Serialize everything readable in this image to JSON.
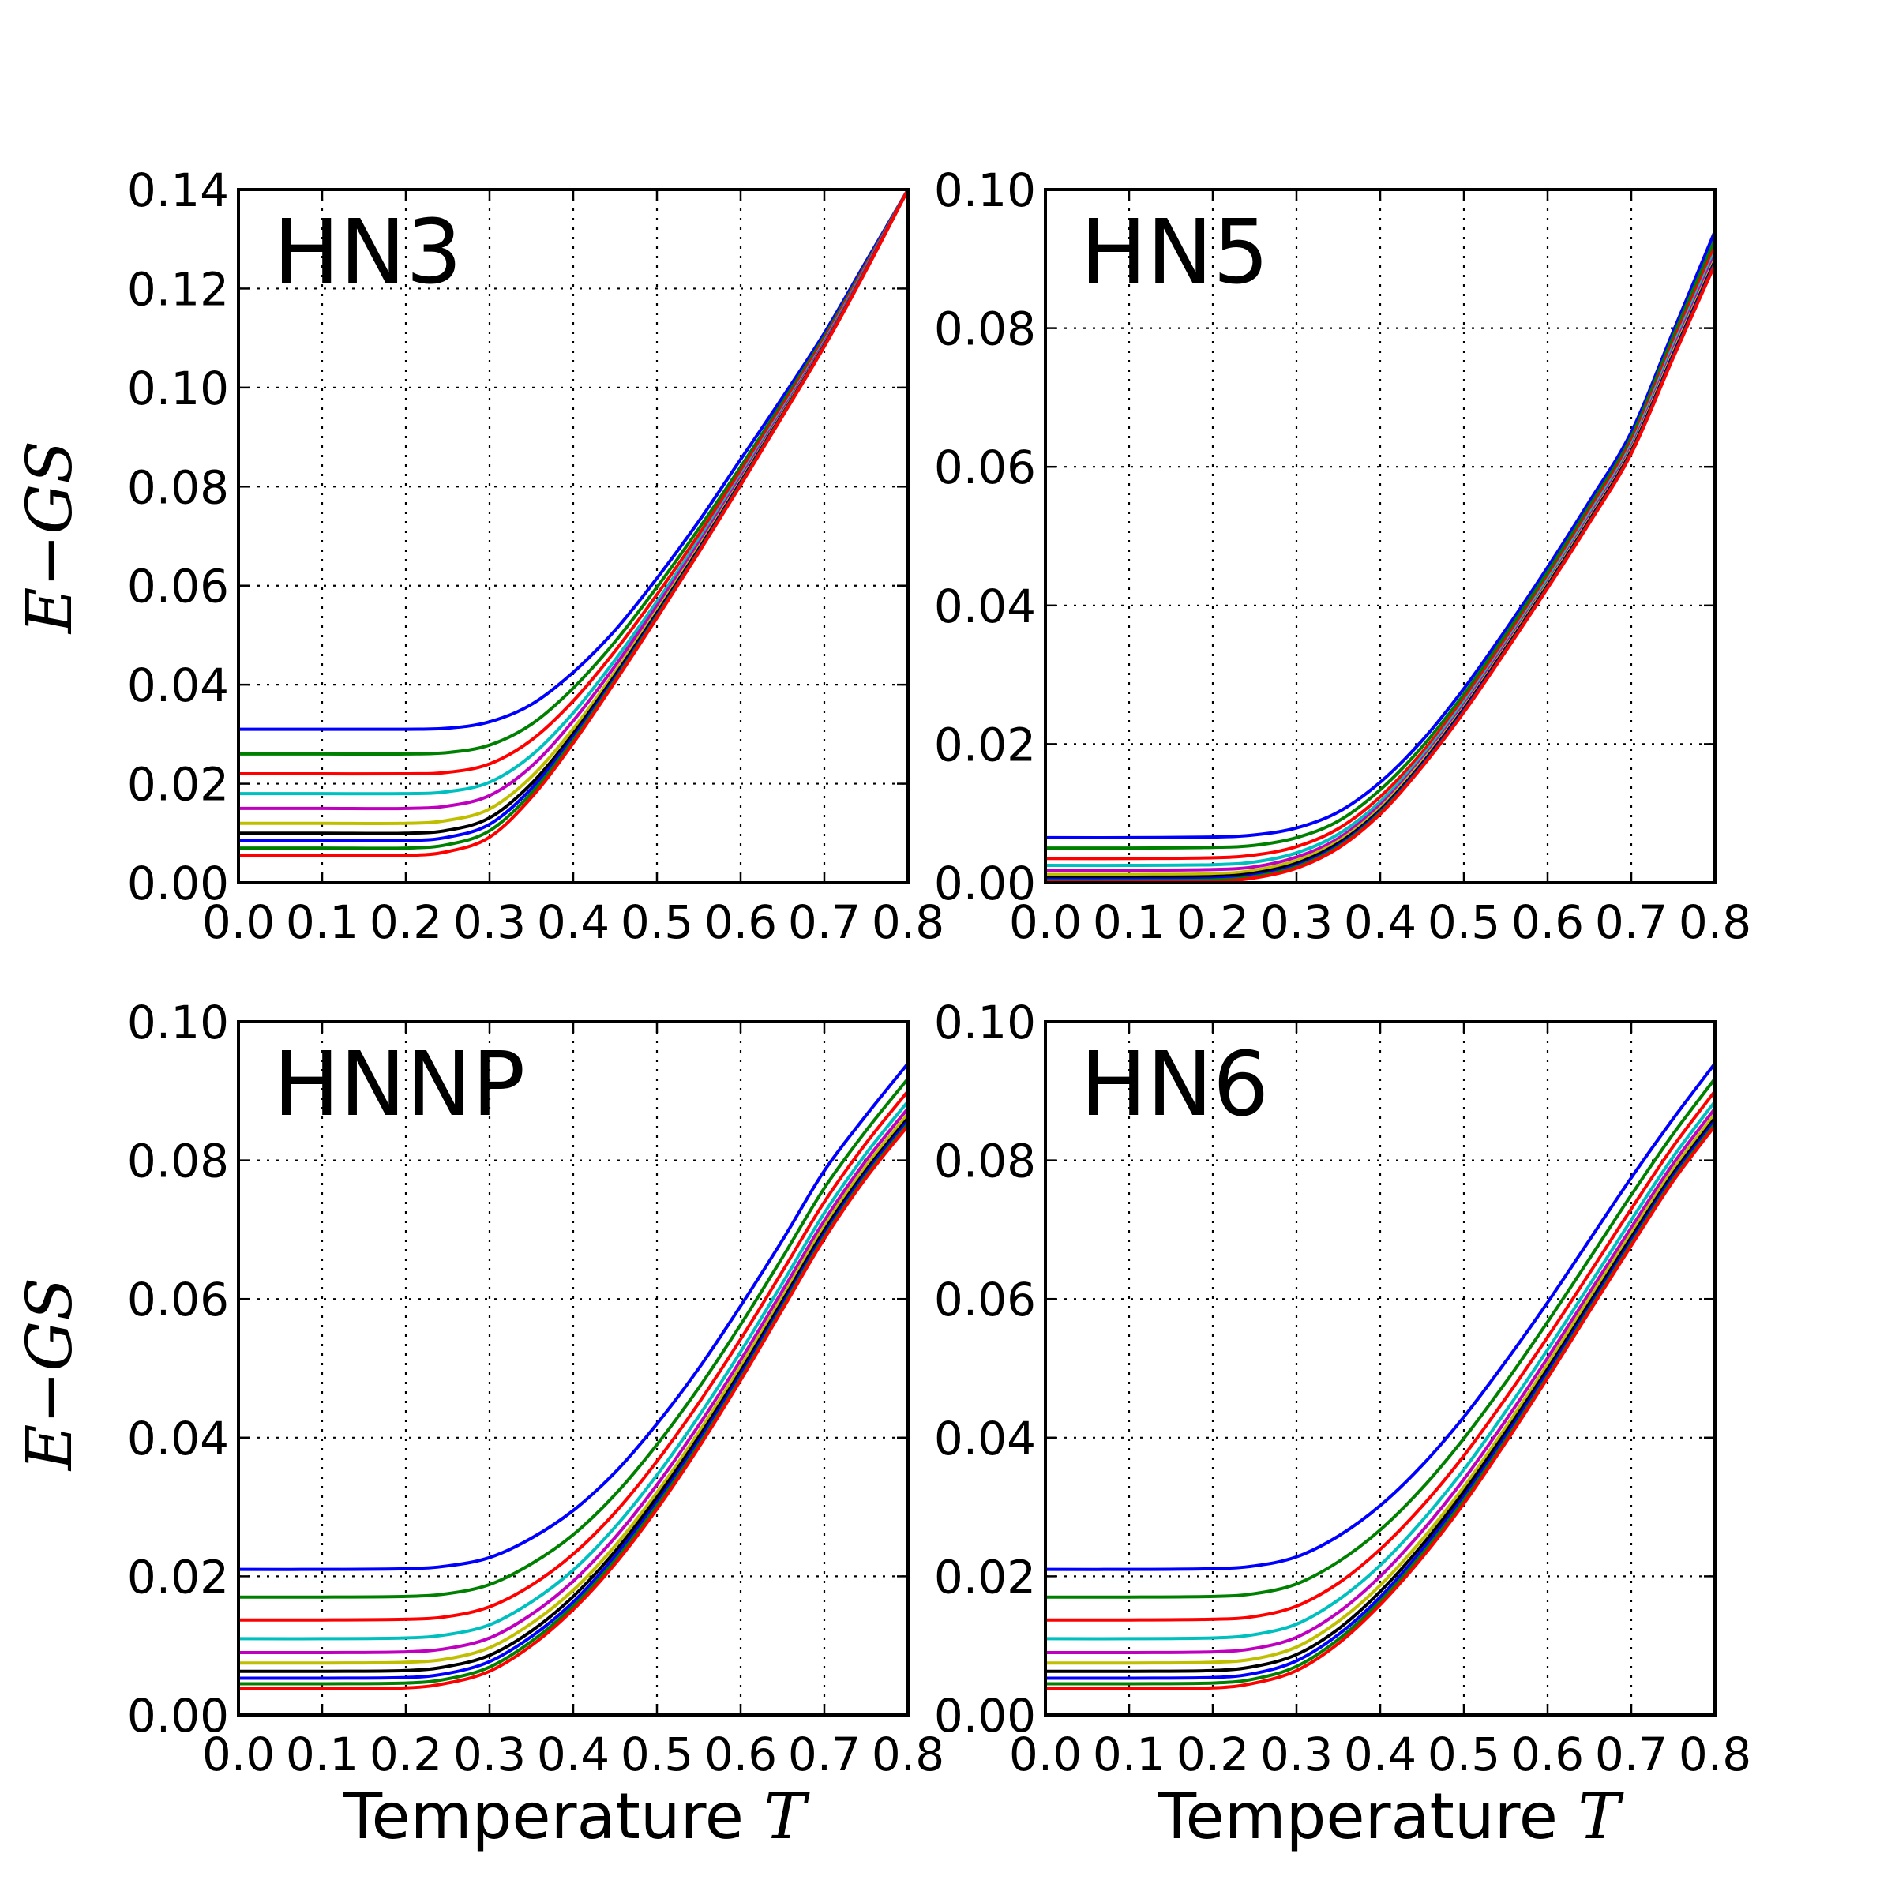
{
  "figure": {
    "ylabel_parts": [
      "E",
      "−",
      "GS"
    ],
    "xlabel_text": "Temperature ",
    "xlabel_math": "T",
    "palette": [
      "#0000ff",
      "#008000",
      "#ff0000",
      "#00bfbf",
      "#bf00bf",
      "#bfbf00",
      "#000000",
      "#0000ff",
      "#008000",
      "#ff0000"
    ]
  },
  "chart_data": [
    {
      "type": "line",
      "panel_label": "HN3",
      "xlim": [
        0,
        0.8
      ],
      "ylim": [
        0,
        0.14
      ],
      "x_ticks": [
        "0.0",
        "0.1",
        "0.2",
        "0.3",
        "0.4",
        "0.5",
        "0.6",
        "0.7",
        "0.8"
      ],
      "y_ticks": [
        "0.00",
        "0.02",
        "0.04",
        "0.06",
        "0.08",
        "0.10",
        "0.12",
        "0.14"
      ],
      "grid": true,
      "x": [
        0.0,
        0.1,
        0.2,
        0.25,
        0.3,
        0.35,
        0.4,
        0.45,
        0.5,
        0.55,
        0.6,
        0.65,
        0.7,
        0.75,
        0.8
      ],
      "series": [
        {
          "color": "#0000ff",
          "values": [
            0.031,
            0.031,
            0.031,
            0.0312,
            0.0325,
            0.036,
            0.0425,
            0.051,
            0.0615,
            0.073,
            0.0855,
            0.098,
            0.111,
            0.1255,
            0.14
          ]
        },
        {
          "color": "#008000",
          "values": [
            0.026,
            0.026,
            0.026,
            0.0263,
            0.0278,
            0.032,
            0.0393,
            0.0487,
            0.0597,
            0.0715,
            0.084,
            0.097,
            0.1103,
            0.125,
            0.14
          ]
        },
        {
          "color": "#ff0000",
          "values": [
            0.022,
            0.022,
            0.022,
            0.0223,
            0.024,
            0.0288,
            0.0367,
            0.0468,
            0.0582,
            0.0703,
            0.0831,
            0.0963,
            0.1098,
            0.1247,
            0.14
          ]
        },
        {
          "color": "#00bfbf",
          "values": [
            0.018,
            0.018,
            0.018,
            0.0184,
            0.0203,
            0.0257,
            0.0343,
            0.045,
            0.0568,
            0.0692,
            0.0822,
            0.0956,
            0.1093,
            0.1244,
            0.14
          ]
        },
        {
          "color": "#bf00bf",
          "values": [
            0.015,
            0.015,
            0.015,
            0.0155,
            0.0176,
            0.0235,
            0.0327,
            0.0438,
            0.0559,
            0.0685,
            0.0817,
            0.0952,
            0.109,
            0.1242,
            0.14
          ]
        },
        {
          "color": "#bfbf00",
          "values": [
            0.012,
            0.012,
            0.012,
            0.0126,
            0.0149,
            0.0214,
            0.0311,
            0.0426,
            0.055,
            0.0678,
            0.0812,
            0.0948,
            0.1087,
            0.124,
            0.14
          ]
        },
        {
          "color": "#000000",
          "values": [
            0.01,
            0.01,
            0.01,
            0.0106,
            0.0131,
            0.02,
            0.0301,
            0.0419,
            0.0545,
            0.0674,
            0.0809,
            0.0946,
            0.1086,
            0.1239,
            0.14
          ]
        },
        {
          "color": "#0000ff",
          "values": [
            0.0085,
            0.0085,
            0.0085,
            0.0092,
            0.0118,
            0.019,
            0.0294,
            0.0414,
            0.0541,
            0.0671,
            0.0807,
            0.0945,
            0.1085,
            0.1239,
            0.14
          ]
        },
        {
          "color": "#008000",
          "values": [
            0.007,
            0.007,
            0.007,
            0.0077,
            0.0105,
            0.0181,
            0.0288,
            0.041,
            0.0538,
            0.0669,
            0.0805,
            0.0944,
            0.1084,
            0.1238,
            0.14
          ]
        },
        {
          "color": "#ff0000",
          "values": [
            0.0055,
            0.0055,
            0.0055,
            0.0063,
            0.0092,
            0.0172,
            0.0282,
            0.0406,
            0.0535,
            0.0667,
            0.0803,
            0.0942,
            0.1083,
            0.1237,
            0.14
          ]
        }
      ]
    },
    {
      "type": "line",
      "panel_label": "HN5",
      "xlim": [
        0,
        0.8
      ],
      "ylim": [
        0,
        0.1
      ],
      "x_ticks": [
        "0.0",
        "0.1",
        "0.2",
        "0.3",
        "0.4",
        "0.5",
        "0.6",
        "0.7",
        "0.8"
      ],
      "y_ticks": [
        "0.00",
        "0.02",
        "0.04",
        "0.06",
        "0.08",
        "0.10"
      ],
      "grid": true,
      "x": [
        0.0,
        0.1,
        0.2,
        0.25,
        0.3,
        0.35,
        0.4,
        0.45,
        0.5,
        0.55,
        0.6,
        0.65,
        0.7,
        0.75,
        0.8
      ],
      "series": [
        {
          "color": "#0000ff",
          "values": [
            0.0065,
            0.0065,
            0.0066,
            0.0069,
            0.0079,
            0.0102,
            0.0145,
            0.0205,
            0.028,
            0.0365,
            0.0455,
            0.055,
            0.065,
            0.0795,
            0.094
          ]
        },
        {
          "color": "#008000",
          "values": [
            0.005,
            0.005,
            0.0051,
            0.0054,
            0.0065,
            0.0089,
            0.0134,
            0.0196,
            0.0272,
            0.0358,
            0.0448,
            0.0543,
            0.0643,
            0.0788,
            0.0928
          ]
        },
        {
          "color": "#ff0000",
          "values": [
            0.0035,
            0.0035,
            0.0036,
            0.004,
            0.0052,
            0.0078,
            0.0124,
            0.0188,
            0.0265,
            0.0351,
            0.0441,
            0.0537,
            0.0637,
            0.078,
            0.0918
          ]
        },
        {
          "color": "#00bfbf",
          "values": [
            0.0025,
            0.0025,
            0.0026,
            0.003,
            0.0043,
            0.007,
            0.0117,
            0.0182,
            0.026,
            0.0346,
            0.0437,
            0.0532,
            0.0632,
            0.0774,
            0.091
          ]
        },
        {
          "color": "#bf00bf",
          "values": [
            0.0018,
            0.0018,
            0.0019,
            0.0023,
            0.0037,
            0.0064,
            0.0112,
            0.0178,
            0.0256,
            0.0343,
            0.0433,
            0.0528,
            0.0628,
            0.0769,
            0.0905
          ]
        },
        {
          "color": "#bfbf00",
          "values": [
            0.0012,
            0.0012,
            0.0013,
            0.0018,
            0.0032,
            0.006,
            0.0108,
            0.0175,
            0.0253,
            0.034,
            0.0431,
            0.0525,
            0.0625,
            0.0765,
            0.09
          ]
        },
        {
          "color": "#000000",
          "values": [
            0.0008,
            0.0008,
            0.0009,
            0.0014,
            0.0028,
            0.0057,
            0.0105,
            0.0172,
            0.0251,
            0.0338,
            0.0429,
            0.0523,
            0.0623,
            0.0762,
            0.0897
          ]
        },
        {
          "color": "#0000ff",
          "values": [
            0.0005,
            0.0005,
            0.0006,
            0.0011,
            0.0025,
            0.0054,
            0.0103,
            0.017,
            0.0249,
            0.0336,
            0.0427,
            0.0521,
            0.0621,
            0.076,
            0.0895
          ]
        },
        {
          "color": "#008000",
          "values": [
            0.0003,
            0.0003,
            0.0004,
            0.0009,
            0.0023,
            0.0052,
            0.0101,
            0.0168,
            0.0247,
            0.0335,
            0.0426,
            0.052,
            0.062,
            0.0758,
            0.0893
          ]
        },
        {
          "color": "#ff0000",
          "values": [
            0.0001,
            0.0001,
            0.0002,
            0.0007,
            0.0021,
            0.005,
            0.0099,
            0.0167,
            0.0246,
            0.0334,
            0.0425,
            0.0519,
            0.0619,
            0.0757,
            0.0892
          ]
        }
      ]
    },
    {
      "type": "line",
      "panel_label": "HNNP",
      "xlim": [
        0,
        0.8
      ],
      "ylim": [
        0,
        0.1
      ],
      "x_ticks": [
        "0.0",
        "0.1",
        "0.2",
        "0.3",
        "0.4",
        "0.5",
        "0.6",
        "0.7",
        "0.8"
      ],
      "y_ticks": [
        "0.00",
        "0.02",
        "0.04",
        "0.06",
        "0.08",
        "0.10"
      ],
      "grid": true,
      "x": [
        0.0,
        0.1,
        0.2,
        0.25,
        0.3,
        0.35,
        0.4,
        0.45,
        0.5,
        0.55,
        0.6,
        0.65,
        0.7,
        0.75,
        0.8
      ],
      "series": [
        {
          "color": "#0000ff",
          "values": [
            0.021,
            0.021,
            0.0211,
            0.0215,
            0.0227,
            0.0255,
            0.0295,
            0.035,
            0.042,
            0.05,
            0.059,
            0.0685,
            0.0785,
            0.0865,
            0.094
          ]
        },
        {
          "color": "#008000",
          "values": [
            0.017,
            0.017,
            0.0171,
            0.0175,
            0.0188,
            0.0218,
            0.026,
            0.0318,
            0.039,
            0.0472,
            0.0563,
            0.066,
            0.076,
            0.0843,
            0.0918
          ]
        },
        {
          "color": "#ff0000",
          "values": [
            0.0137,
            0.0137,
            0.0138,
            0.0142,
            0.0156,
            0.0187,
            0.0232,
            0.0292,
            0.0366,
            0.045,
            0.0542,
            0.064,
            0.074,
            0.0825,
            0.09
          ]
        },
        {
          "color": "#00bfbf",
          "values": [
            0.011,
            0.011,
            0.0111,
            0.0116,
            0.013,
            0.0163,
            0.0209,
            0.0271,
            0.0346,
            0.0431,
            0.0524,
            0.0623,
            0.0724,
            0.081,
            0.0885
          ]
        },
        {
          "color": "#bf00bf",
          "values": [
            0.009,
            0.009,
            0.0091,
            0.0096,
            0.0111,
            0.0145,
            0.0193,
            0.0256,
            0.0332,
            0.0418,
            0.0512,
            0.0612,
            0.0713,
            0.08,
            0.0875
          ]
        },
        {
          "color": "#bfbf00",
          "values": [
            0.0075,
            0.0075,
            0.0076,
            0.0081,
            0.0097,
            0.0132,
            0.018,
            0.0244,
            0.0321,
            0.0408,
            0.0503,
            0.0603,
            0.0705,
            0.0792,
            0.0867
          ]
        },
        {
          "color": "#000000",
          "values": [
            0.0063,
            0.0063,
            0.0064,
            0.007,
            0.0086,
            0.0121,
            0.0171,
            0.0236,
            0.0314,
            0.0401,
            0.0496,
            0.0597,
            0.0699,
            0.0786,
            0.0861
          ]
        },
        {
          "color": "#0000ff",
          "values": [
            0.0053,
            0.0053,
            0.0054,
            0.006,
            0.0077,
            0.0113,
            0.0163,
            0.0229,
            0.0307,
            0.0395,
            0.0491,
            0.0592,
            0.0694,
            0.0782,
            0.0857
          ]
        },
        {
          "color": "#008000",
          "values": [
            0.0045,
            0.0045,
            0.0046,
            0.0052,
            0.0069,
            0.0106,
            0.0157,
            0.0223,
            0.0302,
            0.039,
            0.0486,
            0.0588,
            0.069,
            0.0778,
            0.0853
          ]
        },
        {
          "color": "#ff0000",
          "values": [
            0.0038,
            0.0038,
            0.0039,
            0.0046,
            0.0063,
            0.01,
            0.0152,
            0.0218,
            0.0297,
            0.0386,
            0.0483,
            0.0585,
            0.0687,
            0.0775,
            0.085
          ]
        }
      ]
    },
    {
      "type": "line",
      "panel_label": "HN6",
      "xlim": [
        0,
        0.8
      ],
      "ylim": [
        0,
        0.1
      ],
      "x_ticks": [
        "0.0",
        "0.1",
        "0.2",
        "0.3",
        "0.4",
        "0.5",
        "0.6",
        "0.7",
        "0.8"
      ],
      "y_ticks": [
        "0.00",
        "0.02",
        "0.04",
        "0.06",
        "0.08",
        "0.10"
      ],
      "grid": true,
      "x": [
        0.0,
        0.1,
        0.2,
        0.25,
        0.3,
        0.35,
        0.4,
        0.45,
        0.5,
        0.55,
        0.6,
        0.65,
        0.7,
        0.75,
        0.8
      ],
      "series": [
        {
          "color": "#0000ff",
          "values": [
            0.021,
            0.021,
            0.0211,
            0.0215,
            0.0228,
            0.0258,
            0.0302,
            0.036,
            0.043,
            0.051,
            0.0595,
            0.0685,
            0.0775,
            0.086,
            0.094
          ]
        },
        {
          "color": "#008000",
          "values": [
            0.017,
            0.017,
            0.0171,
            0.0175,
            0.0189,
            0.0221,
            0.0267,
            0.0327,
            0.0399,
            0.048,
            0.0567,
            0.0658,
            0.075,
            0.0838,
            0.0918
          ]
        },
        {
          "color": "#ff0000",
          "values": [
            0.0137,
            0.0137,
            0.0138,
            0.0142,
            0.0157,
            0.019,
            0.0239,
            0.0301,
            0.0374,
            0.0457,
            0.0545,
            0.0637,
            0.073,
            0.082,
            0.09
          ]
        },
        {
          "color": "#00bfbf",
          "values": [
            0.011,
            0.011,
            0.0111,
            0.0116,
            0.0131,
            0.0166,
            0.0216,
            0.028,
            0.0354,
            0.0438,
            0.0527,
            0.062,
            0.0714,
            0.0805,
            0.0885
          ]
        },
        {
          "color": "#bf00bf",
          "values": [
            0.009,
            0.009,
            0.0091,
            0.0096,
            0.0112,
            0.0148,
            0.02,
            0.0265,
            0.034,
            0.0425,
            0.0515,
            0.0609,
            0.0703,
            0.0795,
            0.0875
          ]
        },
        {
          "color": "#bfbf00",
          "values": [
            0.0075,
            0.0075,
            0.0076,
            0.0081,
            0.0098,
            0.0135,
            0.0187,
            0.0253,
            0.0329,
            0.0415,
            0.0506,
            0.0601,
            0.0695,
            0.0787,
            0.0867
          ]
        },
        {
          "color": "#000000",
          "values": [
            0.0063,
            0.0063,
            0.0064,
            0.007,
            0.0087,
            0.0124,
            0.0178,
            0.0245,
            0.0322,
            0.0408,
            0.0499,
            0.0594,
            0.0689,
            0.0781,
            0.0861
          ]
        },
        {
          "color": "#0000ff",
          "values": [
            0.0053,
            0.0053,
            0.0054,
            0.006,
            0.0078,
            0.0116,
            0.017,
            0.0238,
            0.0315,
            0.0402,
            0.0494,
            0.0589,
            0.0684,
            0.0777,
            0.0857
          ]
        },
        {
          "color": "#008000",
          "values": [
            0.0045,
            0.0045,
            0.0046,
            0.0052,
            0.007,
            0.0109,
            0.0164,
            0.0232,
            0.031,
            0.0397,
            0.0489,
            0.0585,
            0.068,
            0.0773,
            0.0853
          ]
        },
        {
          "color": "#ff0000",
          "values": [
            0.0038,
            0.0038,
            0.0039,
            0.0046,
            0.0064,
            0.0103,
            0.0159,
            0.0227,
            0.0305,
            0.0393,
            0.0486,
            0.0582,
            0.0677,
            0.077,
            0.085
          ]
        }
      ]
    }
  ]
}
